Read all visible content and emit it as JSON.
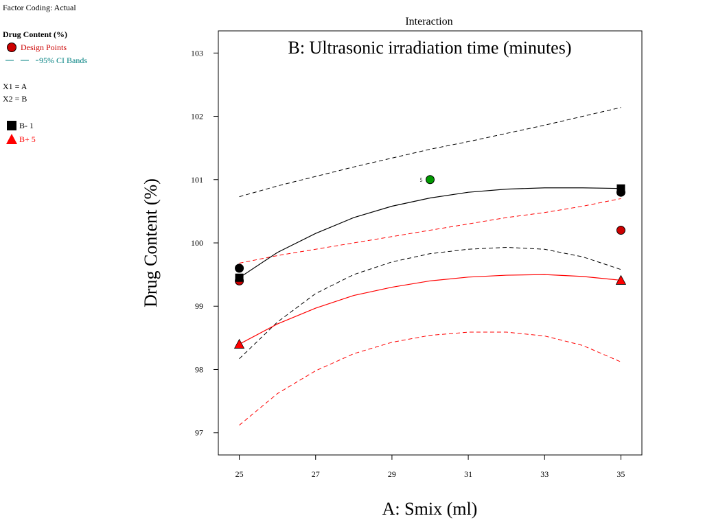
{
  "header": {
    "factor_coding": "Factor Coding: Actual"
  },
  "legend": {
    "response_title": "Drug Content (%)",
    "design_points_label": "Design Points",
    "ci_bands_label": "95% CI Bands",
    "x1_def": "X1 = A",
    "x2_def": "X2 = B",
    "series": [
      {
        "symbol": "square",
        "label": "B- 1",
        "color": "#000000"
      },
      {
        "symbol": "triangle",
        "label": "B+ 5",
        "color": "#ff0000"
      }
    ],
    "colors": {
      "design_points": "#cc0000",
      "ci_bands": "#008080"
    }
  },
  "chart_data": {
    "type": "line",
    "plot_title": "Interaction",
    "factor_title": "B: Ultrasonic irradiation time (minutes)",
    "xlabel": "A: Smix (ml)",
    "ylabel": "Drug Content (%)",
    "xlim": [
      24.45,
      35.55
    ],
    "ylim": [
      96.65,
      103.35
    ],
    "xticks": [
      "25",
      "27",
      "29",
      "31",
      "33",
      "35"
    ],
    "yticks": [
      "97",
      "98",
      "99",
      "100",
      "101",
      "102",
      "103"
    ],
    "series": [
      {
        "name": "B- 1",
        "color": "#000000",
        "marker": "square",
        "fit_x": [
          25,
          26,
          27,
          28,
          29,
          30,
          31,
          32,
          33,
          34,
          35
        ],
        "fit_y": [
          99.45,
          99.85,
          100.15,
          100.4,
          100.58,
          100.71,
          100.8,
          100.85,
          100.87,
          100.87,
          100.86
        ],
        "ci_lower": [
          98.17,
          98.75,
          99.2,
          99.5,
          99.7,
          99.83,
          99.9,
          99.93,
          99.9,
          99.78,
          99.58
        ],
        "ci_upper": [
          100.73,
          100.9,
          101.05,
          101.2,
          101.34,
          101.48,
          101.6,
          101.73,
          101.86,
          102.0,
          102.14
        ],
        "endpoint_values": [
          99.45,
          100.86
        ]
      },
      {
        "name": "B+ 5",
        "color": "#ff0000",
        "marker": "triangle",
        "fit_x": [
          25,
          26,
          27,
          28,
          29,
          30,
          31,
          32,
          33,
          34,
          35
        ],
        "fit_y": [
          98.4,
          98.72,
          98.97,
          99.17,
          99.3,
          99.4,
          99.46,
          99.49,
          99.5,
          99.47,
          99.41
        ],
        "ci_lower": [
          97.12,
          97.62,
          97.98,
          98.25,
          98.43,
          98.54,
          98.59,
          98.59,
          98.53,
          98.38,
          98.12
        ],
        "ci_upper": [
          99.68,
          99.8,
          99.9,
          100.0,
          100.1,
          100.2,
          100.3,
          100.4,
          100.48,
          100.58,
          100.7
        ],
        "endpoint_values": [
          98.4,
          99.41
        ]
      }
    ],
    "design_points": [
      {
        "x": 25,
        "y": 99.6,
        "color": "#000000"
      },
      {
        "x": 25,
        "y": 99.4,
        "color": "#cc0000"
      },
      {
        "x": 30,
        "y": 101.0,
        "color": "#009900",
        "label": "5"
      },
      {
        "x": 35,
        "y": 100.8,
        "color": "#000000"
      },
      {
        "x": 35,
        "y": 100.2,
        "color": "#cc0000"
      }
    ]
  }
}
